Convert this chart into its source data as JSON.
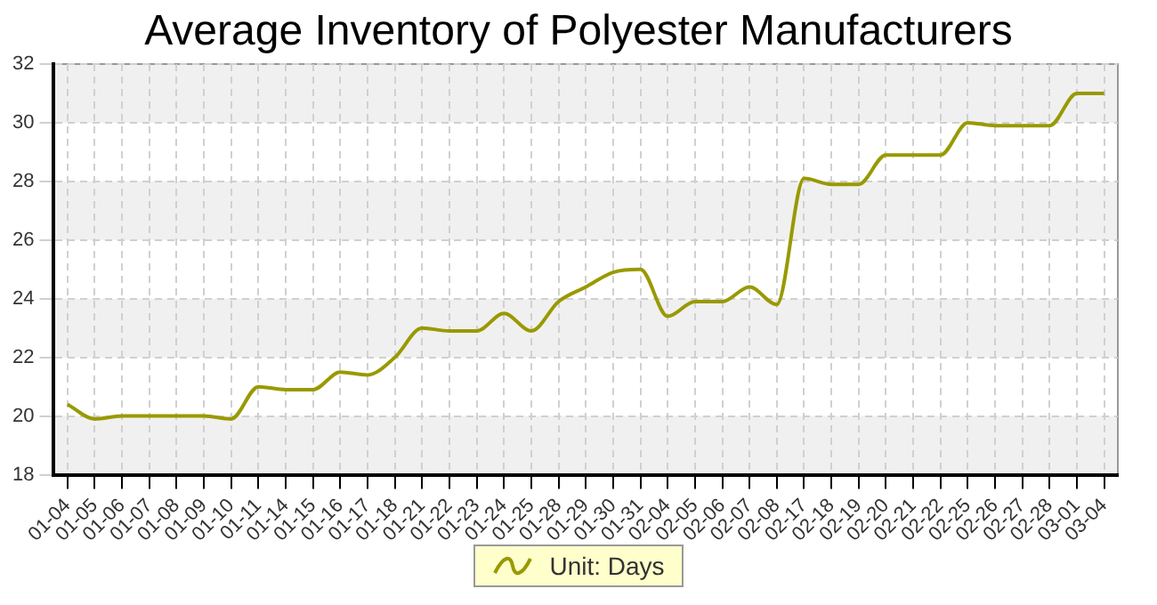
{
  "chart_data": {
    "type": "line",
    "title": "Average Inventory of Polyester Manufacturers",
    "categories": [
      "01-04",
      "01-05",
      "01-06",
      "01-07",
      "01-08",
      "01-09",
      "01-10",
      "01-11",
      "01-14",
      "01-15",
      "01-16",
      "01-17",
      "01-18",
      "01-21",
      "01-22",
      "01-23",
      "01-24",
      "01-25",
      "01-28",
      "01-29",
      "01-30",
      "01-31",
      "02-04",
      "02-05",
      "02-06",
      "02-07",
      "02-08",
      "02-17",
      "02-18",
      "02-19",
      "02-20",
      "02-21",
      "02-22",
      "02-25",
      "02-26",
      "02-27",
      "02-28",
      "03-01",
      "03-04"
    ],
    "series": [
      {
        "name": "Unit: Days",
        "color": "#999900",
        "values": [
          20.4,
          19.9,
          20,
          20,
          20,
          20,
          19.9,
          21,
          20.9,
          20.9,
          21.5,
          21.4,
          22,
          23,
          22.9,
          22.9,
          23.5,
          22.9,
          23.9,
          24.4,
          24.9,
          25,
          23.4,
          23.9,
          23.9,
          24.4,
          23.8,
          28.1,
          27.9,
          27.9,
          28.9,
          28.9,
          28.9,
          30,
          29.9,
          29.9,
          29.9,
          31,
          31
        ]
      }
    ],
    "ylim": [
      18,
      32
    ],
    "yticks": [
      18,
      20,
      22,
      24,
      26,
      28,
      30,
      32
    ],
    "grid": true,
    "legend": "bottom",
    "marker": "none",
    "line_style": "solid"
  }
}
